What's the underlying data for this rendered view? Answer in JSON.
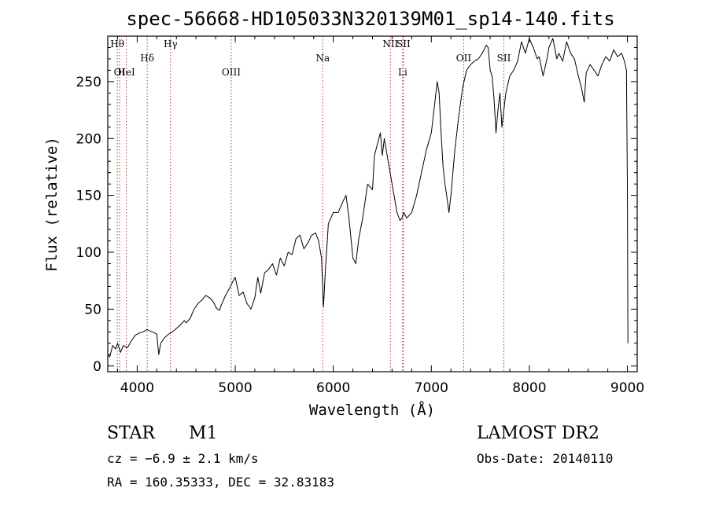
{
  "chart_data": {
    "type": "line",
    "title": "spec-56668-HD105033N320139M01_sp14-140.fits",
    "xlabel": "Wavelength (Å)",
    "ylabel": "Flux (relative)",
    "xlim": [
      3700,
      9100
    ],
    "ylim": [
      -5,
      290
    ],
    "xticks": [
      4000,
      5000,
      6000,
      7000,
      8000,
      9000
    ],
    "yticks": [
      0,
      50,
      100,
      150,
      200,
      250
    ],
    "xtick_labels": [
      "4000",
      "5000",
      "6000",
      "7000",
      "8000",
      "9000"
    ],
    "ytick_labels": [
      "0",
      "50",
      "100",
      "150",
      "200",
      "250"
    ],
    "grid": false,
    "series": [
      {
        "x": [
          3700,
          3720,
          3750,
          3780,
          3800,
          3830,
          3860,
          3900,
          3940,
          3980,
          4020,
          4060,
          4100,
          4150,
          4180,
          4200,
          4220,
          4240,
          4280,
          4320,
          4360,
          4400,
          4440,
          4480,
          4500,
          4540,
          4580,
          4620,
          4660,
          4700,
          4740,
          4780,
          4800,
          4820,
          4840,
          4860,
          4900,
          4940,
          4980,
          5000,
          5040,
          5080,
          5120,
          5160,
          5200,
          5230,
          5260,
          5300,
          5340,
          5380,
          5420,
          5460,
          5500,
          5540,
          5580,
          5620,
          5660,
          5700,
          5740,
          5780,
          5820,
          5850,
          5880,
          5890,
          5900,
          5920,
          5950,
          6000,
          6050,
          6100,
          6130,
          6160,
          6200,
          6230,
          6260,
          6300,
          6350,
          6400,
          6420,
          6450,
          6480,
          6500,
          6520,
          6560,
          6600,
          6650,
          6680,
          6700,
          6720,
          6750,
          6800,
          6850,
          6900,
          6950,
          7000,
          7040,
          7060,
          7080,
          7100,
          7120,
          7140,
          7160,
          7180,
          7200,
          7240,
          7280,
          7320,
          7360,
          7400,
          7440,
          7480,
          7520,
          7560,
          7580,
          7600,
          7620,
          7640,
          7660,
          7680,
          7700,
          7720,
          7760,
          7800,
          7840,
          7880,
          7920,
          7960,
          8000,
          8040,
          8080,
          8100,
          8140,
          8180,
          8200,
          8240,
          8280,
          8300,
          8340,
          8380,
          8420,
          8460,
          8500,
          8530,
          8560,
          8580,
          8620,
          8660,
          8700,
          8740,
          8780,
          8820,
          8860,
          8900,
          8940,
          8970,
          8990,
          9000,
          9005
        ],
        "y": [
          10,
          8,
          18,
          15,
          20,
          12,
          18,
          16,
          22,
          27,
          29,
          30,
          32,
          30,
          29,
          28,
          10,
          20,
          25,
          28,
          30,
          33,
          36,
          40,
          38,
          42,
          50,
          55,
          58,
          62,
          60,
          56,
          52,
          50,
          49,
          54,
          62,
          68,
          75,
          78,
          62,
          65,
          55,
          50,
          60,
          78,
          64,
          82,
          85,
          90,
          80,
          95,
          88,
          100,
          98,
          112,
          115,
          103,
          108,
          115,
          117,
          110,
          95,
          75,
          52,
          85,
          125,
          135,
          135,
          145,
          150,
          130,
          95,
          90,
          112,
          130,
          160,
          155,
          185,
          195,
          205,
          185,
          200,
          180,
          160,
          135,
          128,
          130,
          135,
          130,
          135,
          150,
          170,
          190,
          205,
          235,
          250,
          240,
          205,
          175,
          160,
          148,
          135,
          150,
          190,
          220,
          245,
          260,
          265,
          268,
          270,
          275,
          282,
          280,
          260,
          255,
          235,
          205,
          225,
          240,
          210,
          240,
          255,
          260,
          268,
          285,
          275,
          288,
          280,
          270,
          272,
          255,
          270,
          280,
          288,
          270,
          275,
          268,
          285,
          275,
          270,
          255,
          245,
          232,
          258,
          265,
          260,
          255,
          265,
          272,
          268,
          278,
          272,
          275,
          268,
          260,
          160,
          20
        ]
      }
    ],
    "lines": [
      {
        "label": "Hθ",
        "x": 3797,
        "row": 0
      },
      {
        "label": "OI",
        "x": 3820,
        "row": 2
      },
      {
        "label": "HeI",
        "x": 3889,
        "row": 2
      },
      {
        "label": "Hδ",
        "x": 4102,
        "row": 1
      },
      {
        "label": "Hγ",
        "x": 4340,
        "row": 0
      },
      {
        "label": "OIII",
        "x": 4959,
        "row": 2
      },
      {
        "label": "Na",
        "x": 5893,
        "row": 1
      },
      {
        "label": "NII",
        "x": 6583,
        "row": 0
      },
      {
        "label": "SII",
        "x": 6716,
        "row": 0
      },
      {
        "label": "Li",
        "x": 6708,
        "row": 2
      },
      {
        "label": "OII",
        "x": 7330,
        "row": 1
      },
      {
        "label": "SII",
        "x": 7740,
        "row": 1
      }
    ]
  },
  "info": {
    "class": "STAR",
    "subclass": "M1",
    "survey": "LAMOST DR2",
    "cz": "cz = −6.9 ± 2.1 km/s",
    "obs_date": "Obs-Date: 20140110",
    "coords": "RA = 160.35333, DEC =  32.83183"
  }
}
